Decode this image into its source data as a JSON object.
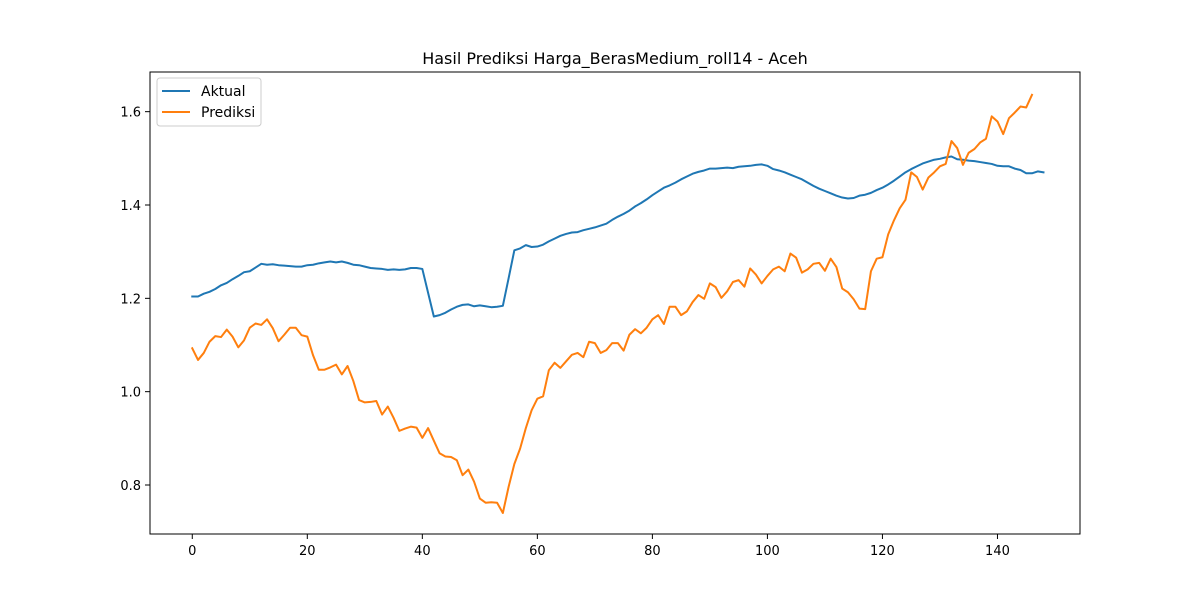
{
  "chart_data": {
    "type": "line",
    "title": "Hasil Prediksi Harga_BerasMedium_roll14 - Aceh",
    "xlabel": "",
    "ylabel": "",
    "xlim": [
      -7.35,
      154.35
    ],
    "ylim": [
      0.695,
      1.685
    ],
    "xticks": [
      0,
      20,
      40,
      60,
      80,
      100,
      120,
      140
    ],
    "xtick_labels": [
      "0",
      "20",
      "40",
      "60",
      "80",
      "100",
      "120",
      "140"
    ],
    "yticks": [
      0.8,
      1.0,
      1.2,
      1.4,
      1.6
    ],
    "ytick_labels": [
      "0.8",
      "1.0",
      "1.2",
      "1.4",
      "1.6"
    ],
    "grid": false,
    "legend_position": "upper-left",
    "series": [
      {
        "name": "Aktual",
        "color": "#1f77b4",
        "values": [
          1.204,
          1.204,
          1.21,
          1.214,
          1.22,
          1.228,
          1.233,
          1.241,
          1.248,
          1.256,
          1.258,
          1.266,
          1.274,
          1.272,
          1.273,
          1.271,
          1.27,
          1.269,
          1.268,
          1.268,
          1.271,
          1.272,
          1.275,
          1.277,
          1.279,
          1.277,
          1.279,
          1.276,
          1.272,
          1.271,
          1.268,
          1.265,
          1.264,
          1.263,
          1.261,
          1.262,
          1.261,
          1.262,
          1.265,
          1.265,
          1.263,
          1.212,
          1.161,
          1.164,
          1.169,
          1.176,
          1.182,
          1.186,
          1.187,
          1.183,
          1.185,
          1.183,
          1.181,
          1.182,
          1.184,
          1.243,
          1.303,
          1.307,
          1.314,
          1.31,
          1.311,
          1.315,
          1.322,
          1.328,
          1.334,
          1.338,
          1.341,
          1.342,
          1.346,
          1.349,
          1.352,
          1.356,
          1.36,
          1.368,
          1.375,
          1.381,
          1.388,
          1.397,
          1.404,
          1.412,
          1.421,
          1.429,
          1.437,
          1.442,
          1.448,
          1.455,
          1.461,
          1.467,
          1.471,
          1.474,
          1.478,
          1.478,
          1.479,
          1.48,
          1.479,
          1.482,
          1.483,
          1.484,
          1.486,
          1.487,
          1.484,
          1.477,
          1.474,
          1.47,
          1.465,
          1.46,
          1.455,
          1.448,
          1.441,
          1.435,
          1.43,
          1.425,
          1.42,
          1.416,
          1.414,
          1.415,
          1.42,
          1.422,
          1.426,
          1.432,
          1.437,
          1.444,
          1.452,
          1.461,
          1.47,
          1.477,
          1.483,
          1.489,
          1.493,
          1.497,
          1.499,
          1.502,
          1.504,
          1.498,
          1.497,
          1.495,
          1.494,
          1.492,
          1.49,
          1.488,
          1.484,
          1.483,
          1.483,
          1.478,
          1.475,
          1.468,
          1.468,
          1.472,
          1.47
        ]
      },
      {
        "name": "Prediksi",
        "color": "#ff7f0e",
        "values": [
          1.093,
          1.068,
          1.083,
          1.107,
          1.119,
          1.117,
          1.133,
          1.118,
          1.095,
          1.11,
          1.137,
          1.146,
          1.143,
          1.155,
          1.136,
          1.108,
          1.122,
          1.137,
          1.137,
          1.121,
          1.118,
          1.078,
          1.047,
          1.047,
          1.052,
          1.058,
          1.037,
          1.055,
          1.023,
          0.982,
          0.977,
          0.978,
          0.98,
          0.951,
          0.968,
          0.944,
          0.916,
          0.921,
          0.925,
          0.923,
          0.901,
          0.922,
          0.895,
          0.868,
          0.861,
          0.86,
          0.853,
          0.821,
          0.833,
          0.807,
          0.771,
          0.762,
          0.763,
          0.762,
          0.74,
          0.796,
          0.845,
          0.878,
          0.922,
          0.96,
          0.985,
          0.99,
          1.046,
          1.062,
          1.051,
          1.065,
          1.079,
          1.083,
          1.074,
          1.107,
          1.104,
          1.083,
          1.089,
          1.104,
          1.104,
          1.088,
          1.122,
          1.134,
          1.125,
          1.137,
          1.155,
          1.164,
          1.145,
          1.182,
          1.182,
          1.164,
          1.172,
          1.192,
          1.207,
          1.199,
          1.232,
          1.224,
          1.201,
          1.215,
          1.235,
          1.239,
          1.225,
          1.264,
          1.251,
          1.232,
          1.248,
          1.262,
          1.268,
          1.258,
          1.296,
          1.287,
          1.255,
          1.262,
          1.274,
          1.276,
          1.259,
          1.285,
          1.267,
          1.221,
          1.213,
          1.198,
          1.178,
          1.177,
          1.258,
          1.285,
          1.288,
          1.337,
          1.367,
          1.393,
          1.411,
          1.47,
          1.46,
          1.433,
          1.459,
          1.47,
          1.483,
          1.488,
          1.537,
          1.522,
          1.486,
          1.512,
          1.52,
          1.534,
          1.542,
          1.59,
          1.579,
          1.552,
          1.586,
          1.598,
          1.611,
          1.609,
          1.636
        ]
      }
    ]
  }
}
